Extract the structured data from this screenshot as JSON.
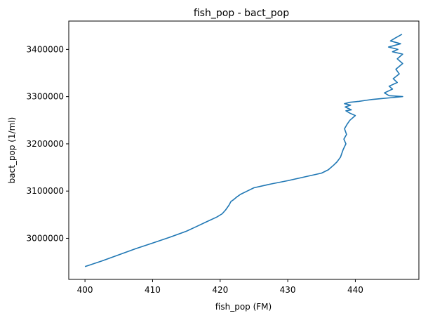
{
  "chart_data": {
    "type": "line",
    "title": "fish_pop - bact_pop",
    "xlabel": "fish_pop (FM)",
    "ylabel": "bact_pop (1/ml)",
    "xlim": [
      397.6,
      449.4
    ],
    "ylim": [
      2913000,
      3460000
    ],
    "xticks": [
      400,
      410,
      420,
      430,
      440
    ],
    "yticks": [
      3000000,
      3100000,
      3200000,
      3300000,
      3400000
    ],
    "grid": false,
    "legend": "none",
    "line_color": "#1f77b4",
    "series": [
      {
        "x": [
          400.0,
          402.5,
          405.0,
          407.5,
          410.0,
          412.5,
          415.0,
          416.5,
          418.0,
          419.5,
          420.3,
          420.8,
          421.3,
          421.6,
          422.0,
          422.5,
          423.0,
          424.0,
          425.0,
          427.5,
          430.0,
          432.5,
          435.0,
          436.0,
          436.8,
          437.3,
          437.8,
          438.2,
          438.6,
          438.3,
          438.7,
          438.4,
          438.8,
          439.2,
          440.0,
          439.2,
          438.6,
          439.4,
          438.5,
          439.3,
          438.4,
          439.2,
          440.5,
          441.5,
          442.5,
          444.0,
          445.5,
          447.0,
          445.0,
          444.3,
          445.5,
          445.0,
          446.2,
          445.6,
          446.5,
          446.0,
          447.0,
          446.2,
          447.0,
          445.5,
          446.3,
          444.9,
          446.7,
          445.2,
          445.9,
          446.9
        ],
        "y": [
          2940000,
          2952000,
          2965000,
          2978000,
          2990000,
          3002000,
          3015000,
          3025000,
          3035000,
          3045000,
          3052000,
          3060000,
          3070000,
          3078000,
          3082000,
          3088000,
          3093000,
          3100000,
          3107000,
          3115000,
          3122000,
          3130000,
          3138000,
          3145000,
          3155000,
          3162000,
          3172000,
          3188000,
          3200000,
          3210000,
          3220000,
          3232000,
          3242000,
          3250000,
          3260000,
          3265000,
          3270000,
          3272000,
          3278000,
          3282000,
          3285000,
          3288000,
          3290000,
          3292000,
          3294000,
          3296000,
          3298000,
          3300000,
          3302000,
          3308000,
          3316000,
          3322000,
          3330000,
          3338000,
          3348000,
          3358000,
          3370000,
          3380000,
          3390000,
          3395000,
          3400000,
          3405000,
          3412000,
          3418000,
          3424000,
          3432000
        ]
      }
    ]
  }
}
